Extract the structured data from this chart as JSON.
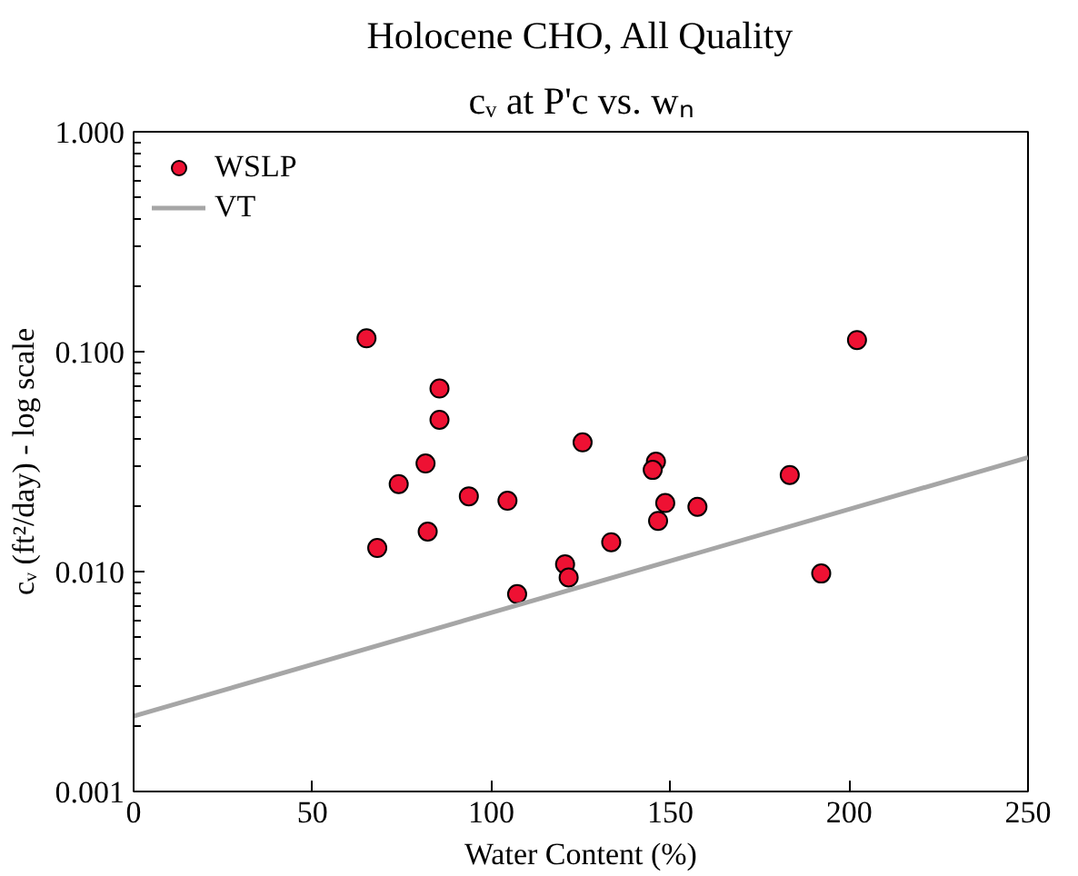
{
  "chart_data": {
    "type": "scatter",
    "title": "Holocene CHO, All Quality",
    "subtitle": "cᵥ at P'c vs. wₙ",
    "xlabel": "Water Content (%)",
    "ylabel": "cᵥ (ft²/day) - log scale",
    "series": [
      {
        "name": "WSLP",
        "color": "#ee1133",
        "marker": "circle",
        "x": [
          65.1,
          85.5,
          85.5,
          81.6,
          74.1,
          93.7,
          104.5,
          68.1,
          82.2,
          107.2,
          120.6,
          121.6,
          202.2,
          125.5,
          146,
          145.1,
          183.4,
          148.6,
          157.6,
          146.6,
          133.5,
          192.2
        ],
        "values": [
          0.115,
          0.068,
          0.049,
          0.031,
          0.025,
          0.022,
          0.021,
          0.0128,
          0.0152,
          0.0079,
          0.0108,
          0.0094,
          0.113,
          0.0387,
          0.0316,
          0.029,
          0.0275,
          0.0205,
          0.0197,
          0.017,
          0.0136,
          0.0098
        ]
      },
      {
        "name": "VT",
        "type": "line",
        "color": "#a6a6a6",
        "line_style": "solid",
        "x": [
          0,
          250
        ],
        "values": [
          0.0022,
          0.033
        ]
      }
    ],
    "log": "y",
    "xlim": [
      0,
      250
    ],
    "xticks": [
      0,
      50,
      100,
      150,
      200,
      250
    ],
    "ylim": [
      0.001,
      1
    ],
    "yticks": [
      {
        "value": 0.001,
        "label": "0.001"
      },
      {
        "value": 0.01,
        "label": "0.010"
      },
      {
        "value": 0.1,
        "label": "0.100"
      },
      {
        "value": 1,
        "label": "1.000"
      }
    ],
    "grid": false,
    "legend": "top left"
  }
}
